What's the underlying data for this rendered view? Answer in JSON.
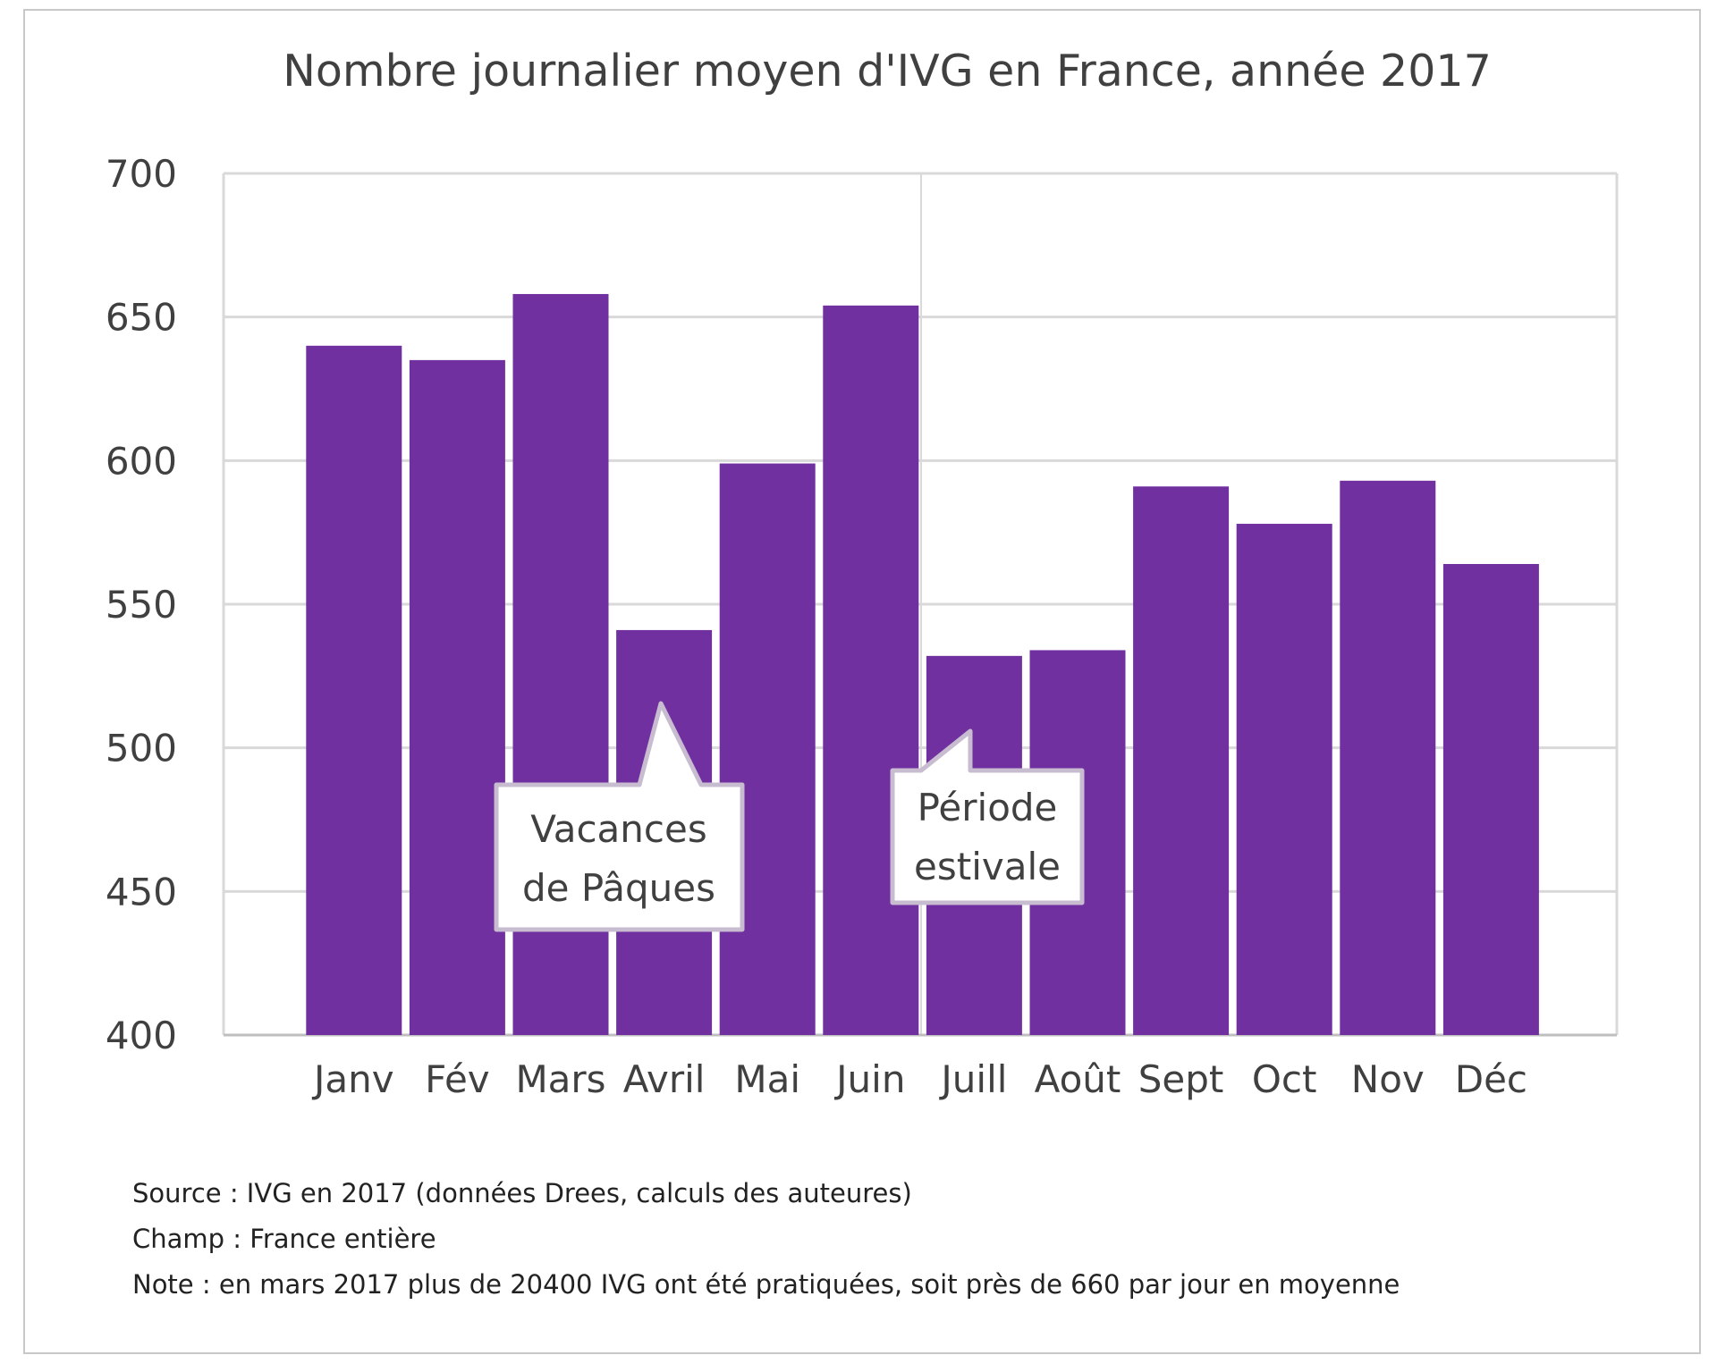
{
  "chart_data": {
    "type": "bar",
    "title": "Nombre journalier moyen d'IVG en France, année 2017",
    "categories": [
      "Janv",
      "Fév",
      "Mars",
      "Avril",
      "Mai",
      "Juin",
      "Juill",
      "Août",
      "Sept",
      "Oct",
      "Nov",
      "Déc"
    ],
    "values": [
      640,
      635,
      658,
      541,
      599,
      654,
      532,
      534,
      591,
      578,
      593,
      564
    ],
    "ylim": [
      400,
      700
    ],
    "yticks": [
      400,
      450,
      500,
      550,
      600,
      650,
      700
    ],
    "xlabel": "",
    "ylabel": "",
    "grid": true,
    "colors": {
      "bar": "#7030a0",
      "grid": "#d9d9d9",
      "axis": "#bfbfbf",
      "text": "#404040"
    },
    "annotations": [
      {
        "text_lines": [
          "Vacances",
          "de Pâques"
        ],
        "points_to": "Avril"
      },
      {
        "text_lines": [
          "Période",
          "estivale"
        ],
        "points_to": "Juill"
      }
    ]
  },
  "notes": {
    "source": "Source : IVG en 2017 (données Drees, calculs des auteures)",
    "champ": "Champ : France entière",
    "note": "Note : en mars 2017 plus de 20400 IVG ont été pratiquées, soit près de 660 par jour en moyenne"
  }
}
